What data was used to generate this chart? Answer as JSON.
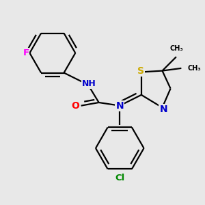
{
  "bg_color": "#e8e8e8",
  "atom_colors": {
    "C": "#000000",
    "N": "#0000cc",
    "O": "#ff0000",
    "S": "#ccaa00",
    "F": "#ff00ff",
    "Cl": "#008800",
    "H": "#555555"
  },
  "bond_color": "#000000",
  "bond_width": 1.6,
  "xlim": [
    0.0,
    3.2
  ],
  "ylim": [
    0.1,
    3.1
  ],
  "figsize": [
    3.0,
    3.0
  ],
  "dpi": 100
}
